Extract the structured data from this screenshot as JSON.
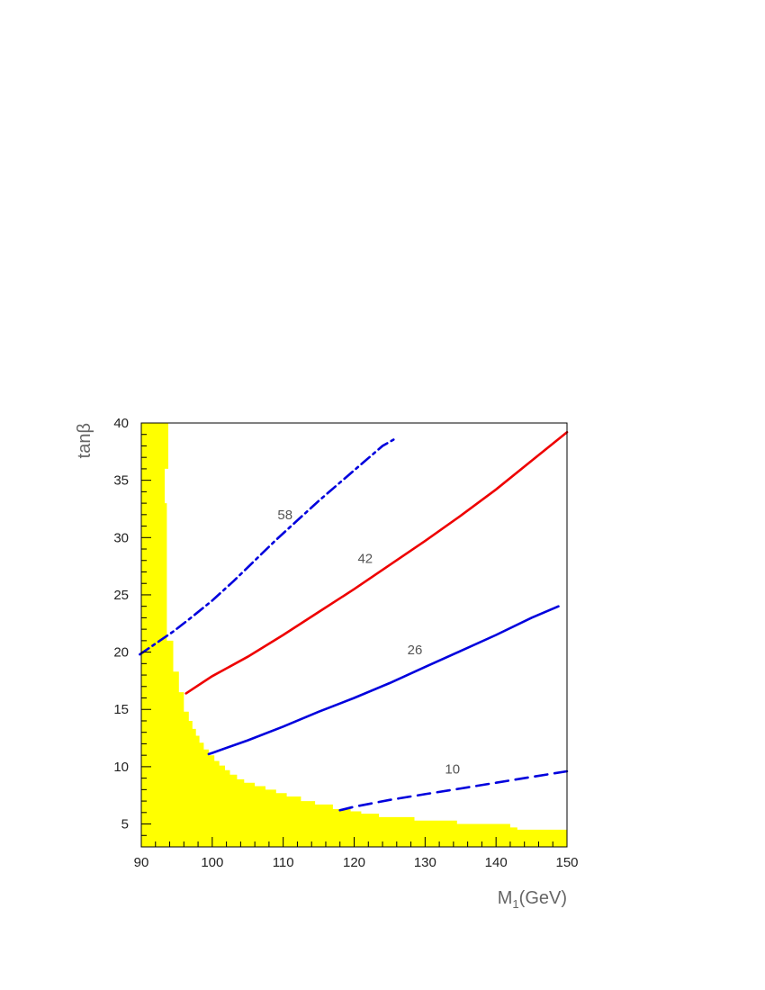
{
  "chart_data": {
    "type": "line",
    "title": "",
    "xlabel": "M",
    "xlabel_sub": "1",
    "xlabel_unit": "(GeV)",
    "ylabel": "tanβ",
    "xlim": [
      90,
      150
    ],
    "ylim": [
      3,
      40
    ],
    "x_ticks": [
      90,
      100,
      110,
      120,
      130,
      140,
      150
    ],
    "y_ticks": [
      5,
      10,
      15,
      20,
      25,
      30,
      35,
      40
    ],
    "grid": false,
    "excluded_region": {
      "color": "#ffff00",
      "boundary": [
        [
          90,
          40
        ],
        [
          93.8,
          40
        ],
        [
          93.8,
          36
        ],
        [
          93.3,
          36
        ],
        [
          93.3,
          33
        ],
        [
          93.6,
          33
        ],
        [
          93.6,
          21
        ],
        [
          94.5,
          21
        ],
        [
          94.5,
          18.3
        ],
        [
          95.3,
          18.3
        ],
        [
          95.3,
          16.5
        ],
        [
          96.0,
          16.5
        ],
        [
          96.0,
          14.8
        ],
        [
          96.7,
          14.8
        ],
        [
          96.7,
          14.0
        ],
        [
          97.2,
          14.0
        ],
        [
          97.2,
          13.3
        ],
        [
          97.7,
          13.3
        ],
        [
          97.7,
          12.7
        ],
        [
          98.2,
          12.7
        ],
        [
          98.2,
          12.1
        ],
        [
          98.8,
          12.1
        ],
        [
          98.8,
          11.5
        ],
        [
          99.5,
          11.5
        ],
        [
          99.5,
          11.0
        ],
        [
          100.3,
          11.0
        ],
        [
          100.3,
          10.5
        ],
        [
          101.0,
          10.5
        ],
        [
          101.0,
          10.1
        ],
        [
          101.8,
          10.1
        ],
        [
          101.8,
          9.7
        ],
        [
          102.5,
          9.7
        ],
        [
          102.5,
          9.3
        ],
        [
          103.5,
          9.3
        ],
        [
          103.5,
          8.9
        ],
        [
          104.5,
          8.9
        ],
        [
          104.5,
          8.6
        ],
        [
          106.0,
          8.6
        ],
        [
          106.0,
          8.3
        ],
        [
          107.5,
          8.3
        ],
        [
          107.5,
          8.0
        ],
        [
          109.0,
          8.0
        ],
        [
          109.0,
          7.7
        ],
        [
          110.5,
          7.7
        ],
        [
          110.5,
          7.4
        ],
        [
          112.5,
          7.4
        ],
        [
          112.5,
          7.0
        ],
        [
          114.5,
          7.0
        ],
        [
          114.5,
          6.7
        ],
        [
          117.0,
          6.7
        ],
        [
          117.0,
          6.3
        ],
        [
          119.5,
          6.3
        ],
        [
          119.5,
          6.1
        ],
        [
          121.0,
          6.1
        ],
        [
          121.0,
          5.9
        ],
        [
          123.5,
          5.9
        ],
        [
          123.5,
          5.6
        ],
        [
          128.5,
          5.6
        ],
        [
          128.5,
          5.3
        ],
        [
          134.5,
          5.3
        ],
        [
          134.5,
          5.0
        ],
        [
          142.0,
          5.0
        ],
        [
          142.0,
          4.7
        ],
        [
          143.0,
          4.7
        ],
        [
          143.0,
          4.5
        ],
        [
          150,
          4.5
        ],
        [
          150,
          3
        ],
        [
          90,
          3
        ]
      ]
    },
    "series": [
      {
        "label": "58",
        "label_pos": [
          109.2,
          31.6
        ],
        "color": "#0000dd",
        "style": "dashdot",
        "x": [
          89.8,
          94.5,
          97,
          100,
          103,
          106,
          109,
          112,
          115,
          118,
          121,
          124,
          126
        ],
        "y": [
          19.8,
          21.8,
          23.0,
          24.5,
          26.2,
          28.0,
          29.8,
          31.5,
          33.2,
          34.8,
          36.4,
          38.0,
          38.7
        ]
      },
      {
        "label": "42",
        "label_pos": [
          120.5,
          27.8
        ],
        "color": "#ee0000",
        "style": "solid",
        "x": [
          96.3,
          100,
          105,
          110,
          115,
          120,
          125,
          130,
          135,
          140,
          145,
          150
        ],
        "y": [
          16.4,
          17.9,
          19.6,
          21.5,
          23.5,
          25.5,
          27.6,
          29.7,
          31.9,
          34.2,
          36.7,
          39.2
        ]
      },
      {
        "label": "26",
        "label_pos": [
          127.5,
          19.8
        ],
        "color": "#0000dd",
        "style": "solid",
        "x": [
          99.5,
          100,
          105,
          110,
          115,
          120,
          125,
          130,
          135,
          140,
          145,
          148.8
        ],
        "y": [
          11.1,
          11.2,
          12.3,
          13.5,
          14.8,
          16.0,
          17.3,
          18.7,
          20.1,
          21.5,
          23.0,
          24.0
        ]
      },
      {
        "label": "10",
        "label_pos": [
          132.8,
          9.4
        ],
        "color": "#0000dd",
        "style": "dashed",
        "x": [
          118,
          120,
          125,
          130,
          135,
          140,
          145,
          150
        ],
        "y": [
          6.2,
          6.5,
          7.1,
          7.6,
          8.1,
          8.6,
          9.1,
          9.6
        ]
      }
    ]
  }
}
